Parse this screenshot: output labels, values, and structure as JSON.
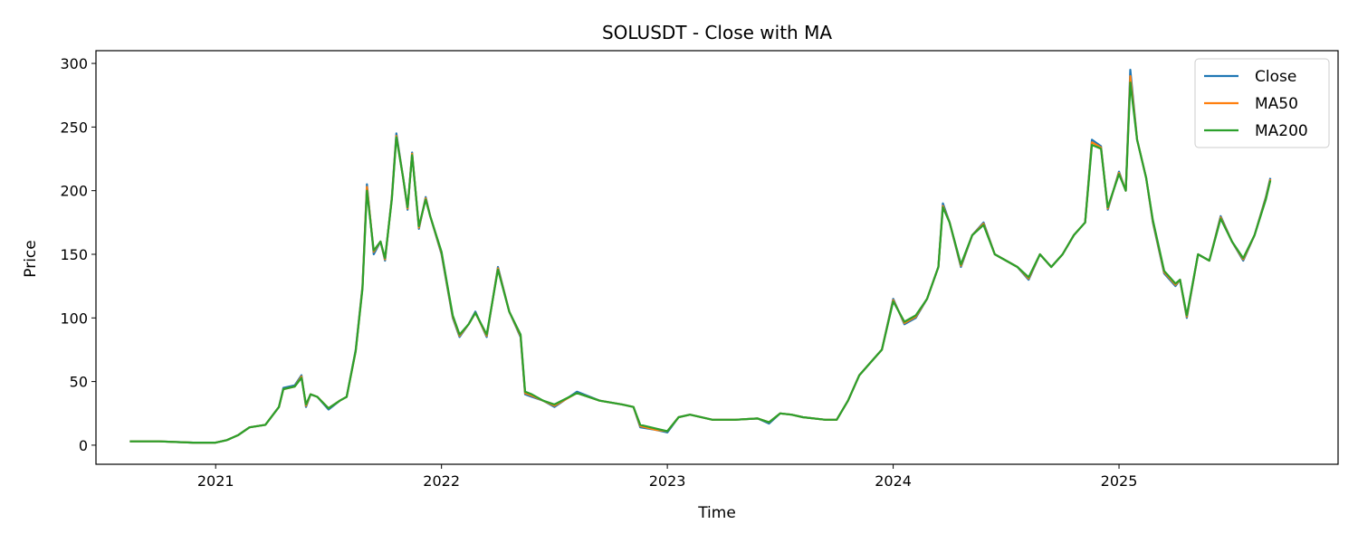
{
  "chart_data": {
    "type": "line",
    "title": "SOLUSDT - Close with MA",
    "xlabel": "Time",
    "ylabel": "Price",
    "xlim": [
      2020.47,
      2025.97
    ],
    "ylim": [
      -15,
      310
    ],
    "x_ticks": [
      {
        "value": 2021,
        "label": "2021"
      },
      {
        "value": 2022,
        "label": "2022"
      },
      {
        "value": 2023,
        "label": "2023"
      },
      {
        "value": 2024,
        "label": "2024"
      },
      {
        "value": 2025,
        "label": "2025"
      }
    ],
    "y_ticks": [
      {
        "value": 0,
        "label": "0"
      },
      {
        "value": 50,
        "label": "50"
      },
      {
        "value": 100,
        "label": "100"
      },
      {
        "value": 150,
        "label": "150"
      },
      {
        "value": 200,
        "label": "200"
      },
      {
        "value": 250,
        "label": "250"
      },
      {
        "value": 300,
        "label": "300"
      }
    ],
    "legend": {
      "placement": "top-right",
      "entries": [
        "Close",
        "MA50",
        "MA200"
      ]
    },
    "x": [
      2020.62,
      2020.75,
      2020.9,
      2021.0,
      2021.05,
      2021.1,
      2021.15,
      2021.22,
      2021.28,
      2021.3,
      2021.35,
      2021.38,
      2021.4,
      2021.42,
      2021.45,
      2021.5,
      2021.55,
      2021.58,
      2021.62,
      2021.65,
      2021.67,
      2021.7,
      2021.73,
      2021.75,
      2021.78,
      2021.8,
      2021.83,
      2021.85,
      2021.87,
      2021.9,
      2021.93,
      2021.95,
      2022.0,
      2022.03,
      2022.05,
      2022.08,
      2022.12,
      2022.15,
      2022.2,
      2022.25,
      2022.3,
      2022.35,
      2022.37,
      2022.4,
      2022.45,
      2022.5,
      2022.6,
      2022.7,
      2022.8,
      2022.85,
      2022.88,
      2022.95,
      2023.0,
      2023.05,
      2023.1,
      2023.2,
      2023.3,
      2023.4,
      2023.45,
      2023.5,
      2023.55,
      2023.6,
      2023.7,
      2023.75,
      2023.8,
      2023.85,
      2023.9,
      2023.95,
      2024.0,
      2024.05,
      2024.1,
      2024.15,
      2024.2,
      2024.22,
      2024.25,
      2024.3,
      2024.35,
      2024.4,
      2024.45,
      2024.5,
      2024.55,
      2024.6,
      2024.65,
      2024.7,
      2024.75,
      2024.8,
      2024.85,
      2024.88,
      2024.92,
      2024.95,
      2025.0,
      2025.03,
      2025.05,
      2025.08,
      2025.12,
      2025.15,
      2025.2,
      2025.25,
      2025.27,
      2025.3,
      2025.35,
      2025.4,
      2025.45,
      2025.5,
      2025.55,
      2025.6,
      2025.65,
      2025.67
    ],
    "series": [
      {
        "name": "Close",
        "color": "#1f77b4",
        "values": [
          3,
          3,
          2,
          2,
          4,
          8,
          14,
          16,
          30,
          45,
          47,
          55,
          30,
          40,
          38,
          28,
          35,
          38,
          75,
          125,
          205,
          150,
          160,
          145,
          195,
          245,
          210,
          185,
          230,
          170,
          195,
          180,
          150,
          120,
          100,
          85,
          95,
          105,
          85,
          140,
          105,
          85,
          40,
          38,
          35,
          30,
          42,
          35,
          32,
          30,
          14,
          12,
          10,
          22,
          24,
          20,
          20,
          21,
          17,
          25,
          24,
          22,
          20,
          20,
          35,
          55,
          65,
          75,
          115,
          95,
          100,
          115,
          140,
          190,
          175,
          140,
          165,
          175,
          150,
          145,
          140,
          130,
          150,
          140,
          150,
          165,
          175,
          240,
          235,
          185,
          215,
          200,
          295,
          240,
          210,
          175,
          135,
          125,
          130,
          100,
          150,
          145,
          180,
          160,
          145,
          165,
          195,
          210
        ]
      },
      {
        "name": "MA50",
        "color": "#ff7f0e",
        "values": [
          3,
          3,
          2,
          2,
          4,
          8,
          14,
          16,
          30,
          44,
          46,
          54,
          31,
          40,
          38,
          29,
          35,
          38,
          74,
          124,
          203,
          152,
          160,
          146,
          194,
          243,
          210,
          186,
          229,
          171,
          194,
          180,
          151,
          121,
          101,
          86,
          95,
          104,
          86,
          139,
          105,
          86,
          41,
          39,
          35,
          31,
          41,
          35,
          32,
          30,
          15,
          12,
          11,
          22,
          24,
          20,
          20,
          21,
          18,
          25,
          24,
          22,
          20,
          20,
          35,
          55,
          65,
          75,
          114,
          96,
          101,
          115,
          140,
          188,
          175,
          141,
          165,
          174,
          150,
          145,
          140,
          131,
          150,
          140,
          150,
          165,
          175,
          238,
          234,
          186,
          214,
          200,
          290,
          240,
          210,
          176,
          136,
          126,
          130,
          101,
          150,
          145,
          179,
          160,
          146,
          165,
          194,
          209
        ]
      },
      {
        "name": "MA200",
        "color": "#2ca02c",
        "values": [
          3,
          3,
          2,
          2,
          4,
          8,
          14,
          16,
          30,
          44,
          46,
          53,
          32,
          40,
          38,
          29,
          35,
          38,
          74,
          123,
          200,
          153,
          160,
          147,
          193,
          242,
          210,
          187,
          228,
          172,
          193,
          180,
          152,
          122,
          102,
          87,
          95,
          104,
          87,
          138,
          105,
          87,
          42,
          40,
          35,
          32,
          41,
          35,
          32,
          30,
          16,
          13,
          11,
          22,
          24,
          20,
          20,
          21,
          18,
          25,
          24,
          22,
          20,
          20,
          35,
          55,
          65,
          75,
          113,
          97,
          102,
          115,
          140,
          187,
          175,
          142,
          165,
          173,
          150,
          145,
          140,
          132,
          150,
          140,
          150,
          165,
          175,
          236,
          233,
          187,
          213,
          200,
          285,
          240,
          210,
          177,
          137,
          127,
          130,
          102,
          150,
          145,
          178,
          160,
          147,
          165,
          193,
          208
        ]
      }
    ]
  }
}
